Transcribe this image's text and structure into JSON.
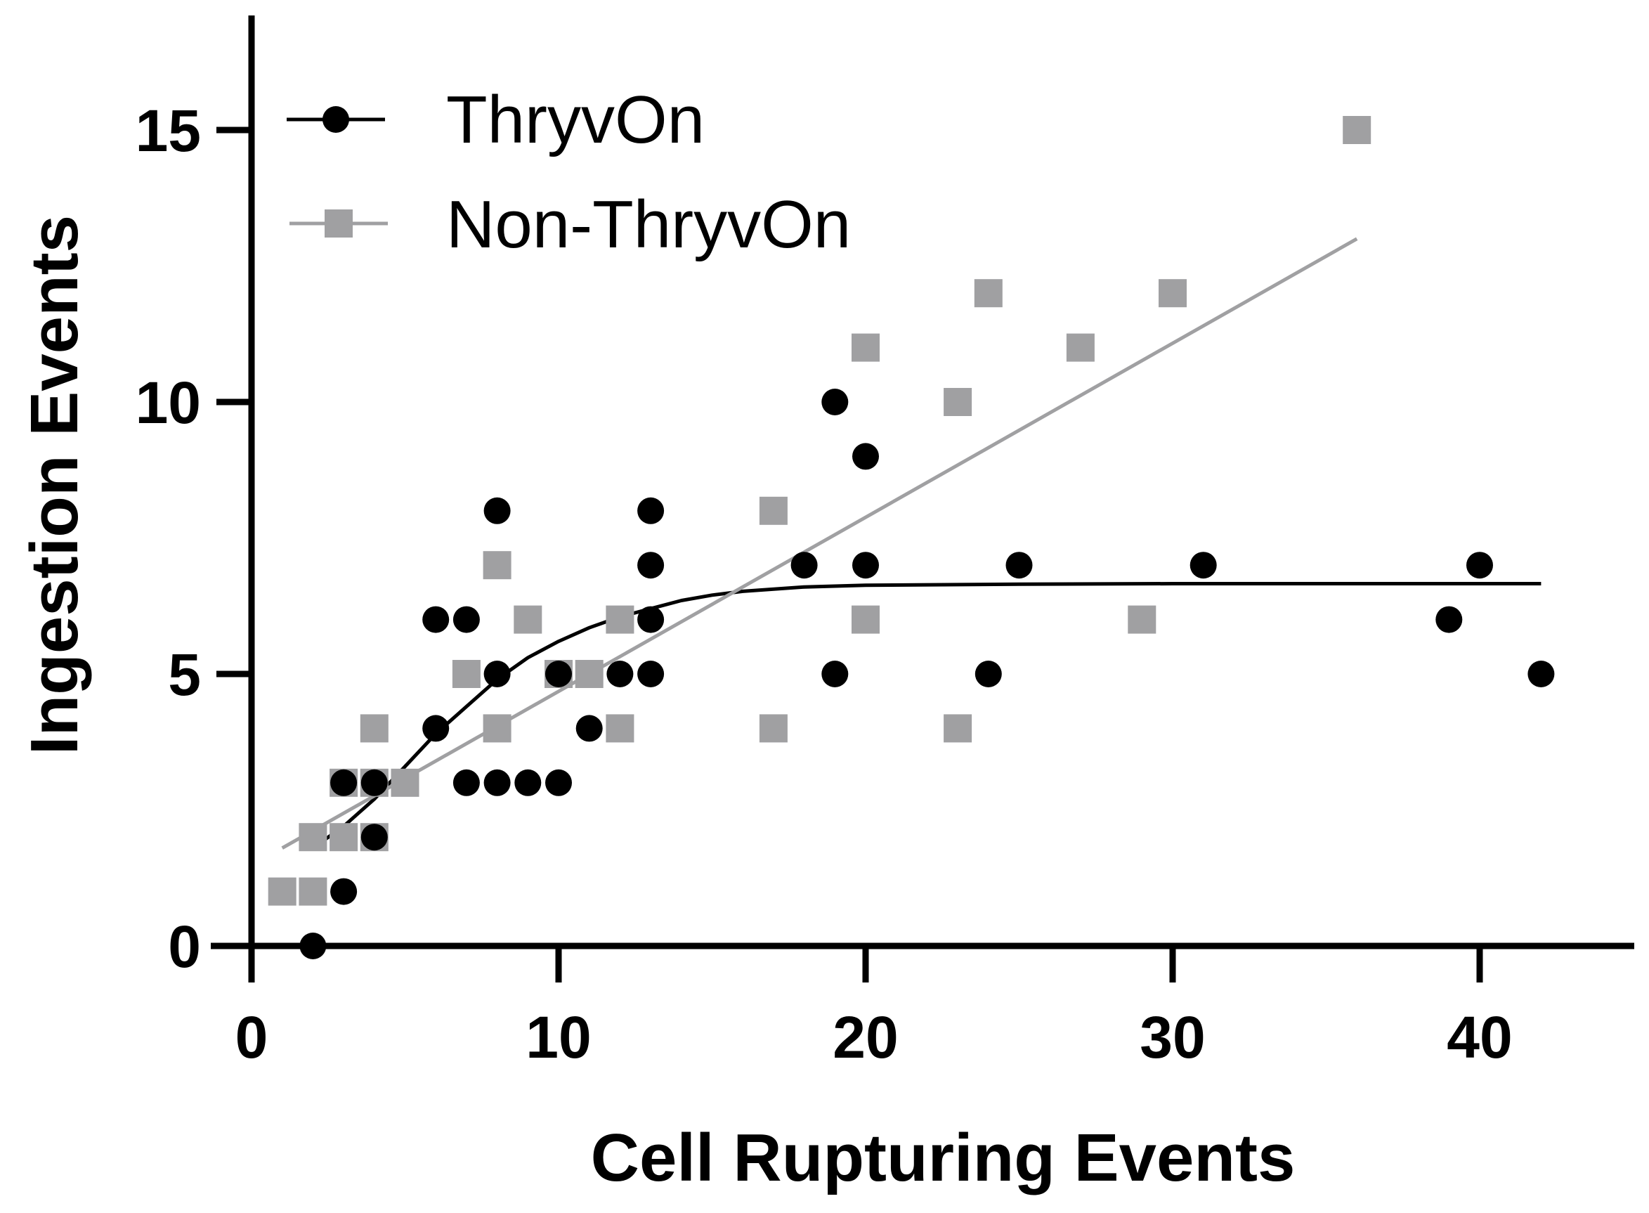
{
  "chart_data": {
    "type": "scatter",
    "title": "",
    "xlabel": "Cell Rupturing Events",
    "ylabel": "Ingestion Events",
    "xlim": [
      0,
      45
    ],
    "ylim": [
      0,
      17
    ],
    "xticks": [
      0,
      10,
      20,
      30,
      40
    ],
    "xtick_labels": [
      "0",
      "10",
      "20",
      "30",
      "40"
    ],
    "yticks": [
      0,
      5,
      10,
      15
    ],
    "ytick_labels": [
      "0",
      "5",
      "10",
      "15"
    ],
    "grid": false,
    "legend_position": "top-left",
    "series": [
      {
        "name": "ThryvOn",
        "color": "#000000",
        "marker": "circle",
        "points": [
          [
            2,
            0
          ],
          [
            3,
            1
          ],
          [
            3,
            3
          ],
          [
            4,
            2
          ],
          [
            4,
            3
          ],
          [
            6,
            4
          ],
          [
            6,
            6
          ],
          [
            7,
            3
          ],
          [
            7,
            6
          ],
          [
            8,
            3
          ],
          [
            8,
            5
          ],
          [
            8,
            8
          ],
          [
            9,
            3
          ],
          [
            10,
            3
          ],
          [
            10,
            5
          ],
          [
            11,
            4
          ],
          [
            12,
            5
          ],
          [
            13,
            5
          ],
          [
            13,
            6
          ],
          [
            13,
            7
          ],
          [
            13,
            8
          ],
          [
            18,
            7
          ],
          [
            19,
            5
          ],
          [
            19,
            10
          ],
          [
            20,
            7
          ],
          [
            20,
            9
          ],
          [
            24,
            5
          ],
          [
            25,
            7
          ],
          [
            31,
            7
          ],
          [
            39,
            6
          ],
          [
            40,
            7
          ],
          [
            42,
            5
          ]
        ],
        "fit": {
          "kind": "sigmoid-plateau",
          "x": [
            2,
            3,
            4,
            5,
            6,
            7,
            8,
            9,
            10,
            11,
            12,
            13,
            14,
            15,
            16,
            18,
            20,
            25,
            30,
            35,
            42
          ],
          "y": [
            1.8,
            2.2,
            2.7,
            3.3,
            3.9,
            4.4,
            4.9,
            5.3,
            5.6,
            5.85,
            6.05,
            6.2,
            6.35,
            6.45,
            6.52,
            6.6,
            6.63,
            6.65,
            6.66,
            6.66,
            6.66
          ]
        }
      },
      {
        "name": "Non-ThryvOn",
        "color": "#a0a0a2",
        "marker": "square",
        "points": [
          [
            1,
            1
          ],
          [
            2,
            1
          ],
          [
            2,
            2
          ],
          [
            3,
            2
          ],
          [
            3,
            3
          ],
          [
            4,
            2
          ],
          [
            4,
            3
          ],
          [
            4,
            4
          ],
          [
            5,
            3
          ],
          [
            7,
            5
          ],
          [
            8,
            4
          ],
          [
            8,
            7
          ],
          [
            9,
            6
          ],
          [
            10,
            5
          ],
          [
            11,
            5
          ],
          [
            12,
            4
          ],
          [
            12,
            6
          ],
          [
            17,
            4
          ],
          [
            17,
            8
          ],
          [
            20,
            6
          ],
          [
            20,
            11
          ],
          [
            23,
            4
          ],
          [
            23,
            10
          ],
          [
            24,
            12
          ],
          [
            27,
            11
          ],
          [
            29,
            6
          ],
          [
            30,
            12
          ],
          [
            36,
            15
          ]
        ],
        "fit": {
          "kind": "linear",
          "x": [
            1,
            36
          ],
          "y": [
            1.8,
            13
          ]
        }
      }
    ]
  }
}
